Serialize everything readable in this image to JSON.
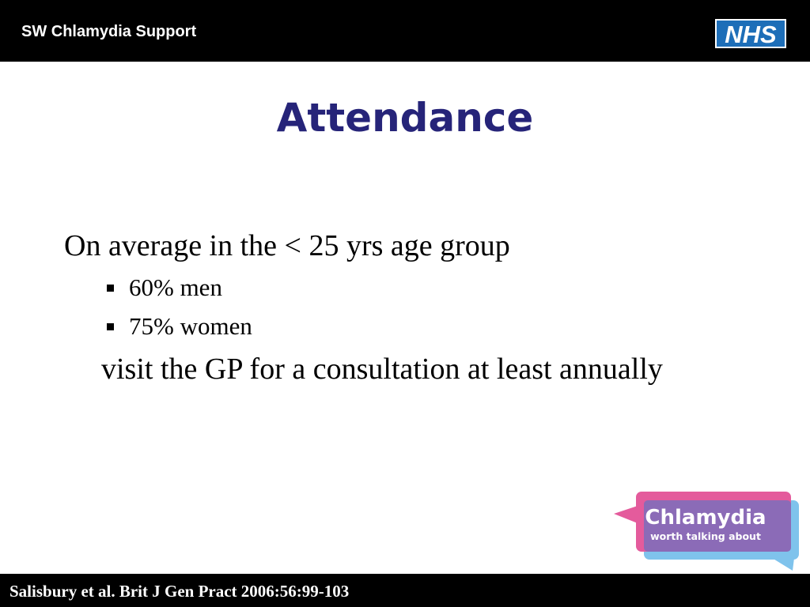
{
  "header": {
    "title": "SW Chlamydia Support",
    "logo_text": "NHS",
    "logo_color": "#1D6EB8",
    "background": "#000000"
  },
  "slide": {
    "title": "Attendance",
    "title_color": "#262479",
    "intro": "On average in the < 25 yrs age group",
    "bullets": [
      "60% men",
      "75% women"
    ],
    "outro": "visit the GP for a consultation at least annually"
  },
  "badge": {
    "title": "Chlamydia",
    "subtitle": "worth talking about",
    "colors": {
      "pink": "#E45B9C",
      "blue": "#7FC3EC",
      "purple": "#8B6BB7"
    }
  },
  "footer": {
    "citation": "Salisbury et al. Brit J Gen Pract 2006:56:99-103",
    "background": "#000000"
  }
}
